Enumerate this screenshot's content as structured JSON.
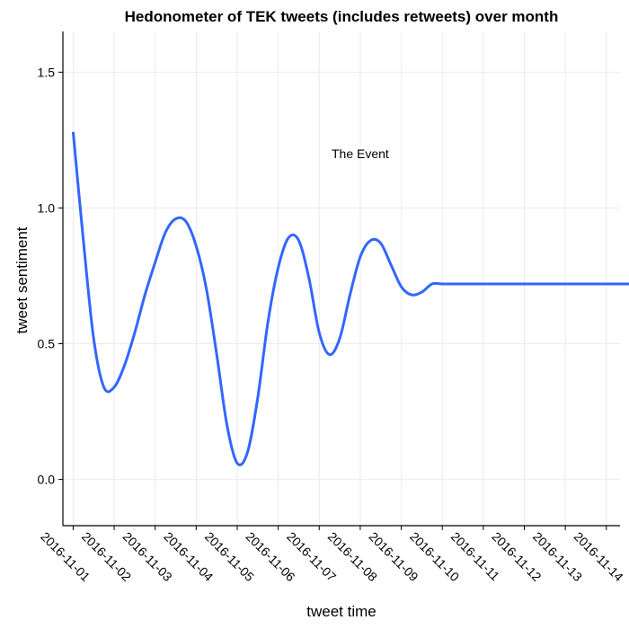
{
  "chart_data": {
    "type": "line",
    "title": "Hedonometer of TEK tweets (includes retweets) over month",
    "xlabel": "tweet time",
    "ylabel": "tweet sentiment",
    "x_ticks": [
      "2016-11-01",
      "2016-11-02",
      "2016-11-03",
      "2016-11-04",
      "2016-11-05",
      "2016-11-06",
      "2016-11-07",
      "2016-11-08",
      "2016-11-09",
      "2016-11-10",
      "2016-11-11",
      "2016-11-12",
      "2016-11-13",
      "2016-11-14"
    ],
    "xlim": [
      "2016-11-00T18:00",
      "2016-11-14T08:00"
    ],
    "y_ticks": [
      "0.0",
      "0.5",
      "1.0",
      "1.5"
    ],
    "ylim": [
      -0.17,
      1.65
    ],
    "grid": true,
    "annotations": [
      {
        "text": "The Event",
        "x": "2016-11-08T00:00",
        "y": 1.2
      }
    ],
    "series": [
      {
        "color": "#3366ff",
        "band_color": "#d3d3d3",
        "x": [
          "2016-11-01T00:00",
          "2016-11-01T06:00",
          "2016-11-01T12:00",
          "2016-11-01T18:00",
          "2016-11-02T00:00",
          "2016-11-02T06:00",
          "2016-11-02T12:00",
          "2016-11-02T18:00",
          "2016-11-03T00:00",
          "2016-11-03T06:00",
          "2016-11-03T12:00",
          "2016-11-03T18:00",
          "2016-11-04T00:00",
          "2016-11-04T06:00",
          "2016-11-04T12:00",
          "2016-11-04T18:00",
          "2016-11-05T00:00",
          "2016-11-05T06:00",
          "2016-11-05T12:00",
          "2016-11-05T18:00",
          "2016-11-06T00:00",
          "2016-11-06T06:00",
          "2016-11-06T12:00",
          "2016-11-06T18:00",
          "2016-11-07T00:00",
          "2016-11-07T06:00",
          "2016-11-07T12:00",
          "2016-11-07T18:00",
          "2016-11-08T00:00",
          "2016-11-08T06:00",
          "2016-11-08T12:00",
          "2016-11-08T18:00",
          "2016-11-09T00:00",
          "2016-11-09T06:00",
          "2016-11-09T12:00",
          "2016-11-09T18:00",
          "2016-11-10T00:00",
          "2016-11-10T06:00",
          "2016-11-10T12:00",
          "2016-11-10T18:00",
          "2016-11-11T00:00",
          "2016-11-11T06:00",
          "2016-11-11T12:00",
          "2016-11-11T18:00",
          "2016-11-12T00:00",
          "2016-11-12T06:00",
          "2016-11-12T12:00",
          "2016-11-12T18:00",
          "2016-11-13T00:00",
          "2016-11-13T06:00",
          "2016-11-13T12:00",
          "2016-11-13T18:00",
          "2016-11-14T00:00",
          "2016-11-14T06:00",
          "2016-11-14T12:00",
          "2016-11-14T18:00"
        ],
        "y": [
          1.28,
          0.88,
          0.52,
          0.34,
          0.34,
          0.42,
          0.54,
          0.68,
          0.8,
          0.91,
          0.96,
          0.95,
          0.86,
          0.7,
          0.46,
          0.2,
          0.06,
          0.1,
          0.3,
          0.58,
          0.78,
          0.89,
          0.88,
          0.74,
          0.54,
          0.46,
          0.52,
          0.68,
          0.82,
          0.88,
          0.87,
          0.79,
          0.71,
          0.68,
          0.69,
          0.72,
          0.72,
          0.72,
          0.72,
          0.72,
          0.72,
          0.72,
          0.72,
          0.72,
          0.72,
          0.72,
          0.72,
          0.72,
          0.72,
          0.72,
          0.72,
          0.72,
          0.72,
          0.72,
          0.72,
          0.72
        ]
      }
    ]
  }
}
